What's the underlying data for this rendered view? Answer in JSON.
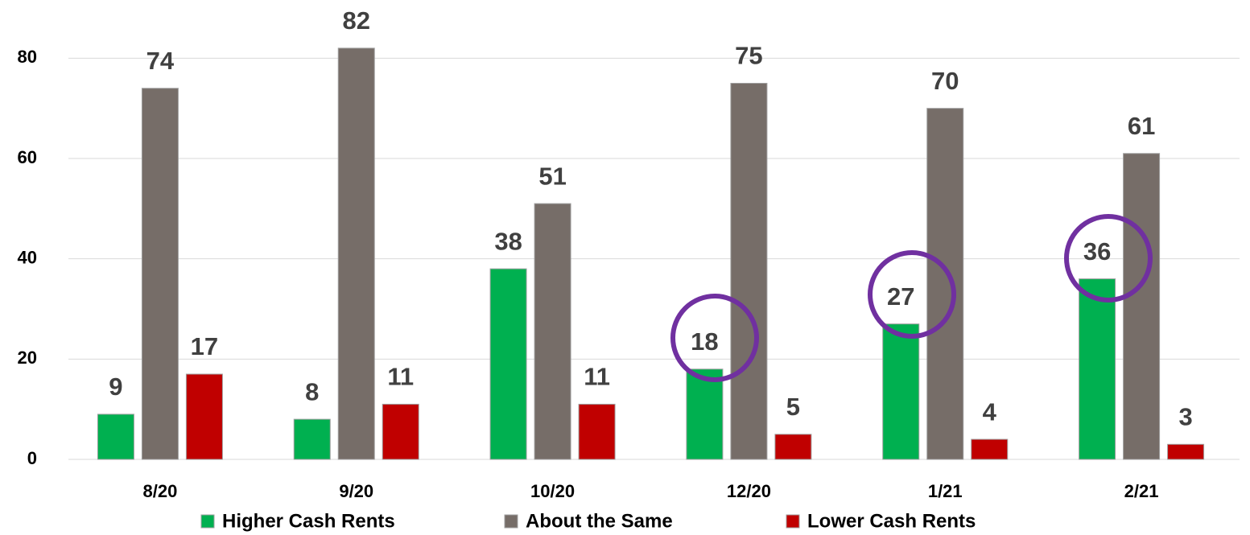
{
  "chart_data": {
    "type": "bar",
    "categories": [
      "8/20",
      "9/20",
      "10/20",
      "12/20",
      "1/21",
      "2/21"
    ],
    "series": [
      {
        "name": "Higher Cash Rents",
        "color": "#00b050",
        "values": [
          9,
          8,
          38,
          18,
          27,
          36
        ]
      },
      {
        "name": "About the Same",
        "color": "#766d68",
        "values": [
          74,
          82,
          51,
          75,
          70,
          61
        ]
      },
      {
        "name": "Lower Cash Rents",
        "color": "#c00000",
        "values": [
          17,
          11,
          11,
          5,
          4,
          3
        ]
      }
    ],
    "ylim": [
      0,
      90
    ],
    "yticks": [
      0,
      20,
      40,
      60,
      80
    ],
    "grid": true,
    "legend": "bottom"
  }
}
